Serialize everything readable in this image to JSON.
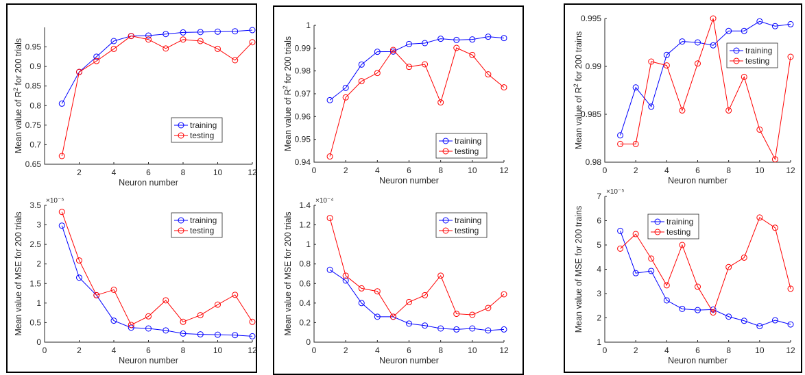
{
  "colors": {
    "training": "#0000ff",
    "testing": "#ff0000",
    "axis": "#262626"
  },
  "chart_data": [
    {
      "id": "p1-r2",
      "type": "line",
      "title": "",
      "xlabel": "Neuron number",
      "ylabel_pre": "Mean value of R",
      "ylabel_sup": "2",
      "ylabel_post": " for 200 trials",
      "exponent_label": "",
      "xlim": [
        0,
        12
      ],
      "ylim": [
        0.65,
        1.0
      ],
      "xticks": [
        0,
        2,
        4,
        6,
        8,
        10,
        12
      ],
      "xtick_labels": [
        "",
        "2",
        "4",
        "6",
        "8",
        "10",
        "12"
      ],
      "yticks": [
        0.65,
        0.7,
        0.75,
        0.8,
        0.85,
        0.9,
        0.95
      ],
      "ytick_labels": [
        "0.65",
        "0.7",
        "0.75",
        "0.8",
        "0.85",
        "0.9",
        "0.95"
      ],
      "legend": [
        "training",
        "testing"
      ],
      "legend_position": "center-right",
      "x": [
        1,
        2,
        3,
        4,
        5,
        6,
        7,
        8,
        9,
        10,
        11,
        12
      ],
      "series": [
        {
          "name": "training",
          "values": [
            0.805,
            0.886,
            0.925,
            0.965,
            0.978,
            0.979,
            0.983,
            0.987,
            0.988,
            0.989,
            0.99,
            0.993
          ]
        },
        {
          "name": "testing",
          "values": [
            0.671,
            0.886,
            0.914,
            0.945,
            0.978,
            0.969,
            0.946,
            0.969,
            0.965,
            0.945,
            0.916,
            0.962
          ]
        }
      ]
    },
    {
      "id": "p1-mse",
      "type": "line",
      "title": "",
      "xlabel": "Neuron number",
      "ylabel_pre": "Mean value of MSE for 200 trials",
      "ylabel_sup": "",
      "ylabel_post": "",
      "exponent_label": "×10⁻⁵",
      "xlim": [
        0,
        12
      ],
      "ylim": [
        0,
        3.5
      ],
      "xticks": [
        0,
        2,
        4,
        6,
        8,
        10,
        12
      ],
      "xtick_labels": [
        "0",
        "2",
        "4",
        "6",
        "8",
        "10",
        "12"
      ],
      "yticks": [
        0,
        0.5,
        1,
        1.5,
        2,
        2.5,
        3,
        3.5
      ],
      "ytick_labels": [
        "0",
        "0.5",
        "1",
        "1.5",
        "2",
        "2.5",
        "3",
        "3.5"
      ],
      "legend": [
        "training",
        "testing"
      ],
      "legend_position": "top-right",
      "x": [
        1,
        2,
        3,
        4,
        5,
        6,
        7,
        8,
        9,
        10,
        11,
        12
      ],
      "series": [
        {
          "name": "training",
          "values": [
            2.98,
            1.65,
            1.2,
            0.55,
            0.37,
            0.35,
            0.3,
            0.22,
            0.2,
            0.19,
            0.18,
            0.15
          ]
        },
        {
          "name": "testing",
          "values": [
            3.33,
            2.09,
            1.2,
            1.34,
            0.44,
            0.66,
            1.07,
            0.52,
            0.69,
            0.96,
            1.21,
            0.52
          ]
        }
      ]
    },
    {
      "id": "p2-r2",
      "type": "line",
      "title": "",
      "xlabel": "Neuron number",
      "ylabel_pre": "Mean value of R",
      "ylabel_sup": "2",
      "ylabel_post": " for 200 trials",
      "exponent_label": "",
      "xlim": [
        0,
        12
      ],
      "ylim": [
        0.94,
        1.0
      ],
      "xticks": [
        0,
        2,
        4,
        6,
        8,
        10,
        12
      ],
      "xtick_labels": [
        "0",
        "2",
        "4",
        "6",
        "8",
        "10",
        "12"
      ],
      "yticks": [
        0.94,
        0.95,
        0.96,
        0.97,
        0.98,
        0.99,
        1.0
      ],
      "ytick_labels": [
        "0.94",
        "0.95",
        "0.96",
        "0.97",
        "0.98",
        "0.99",
        "1"
      ],
      "legend": [
        "training",
        "testing"
      ],
      "legend_position": "bottom-right",
      "x": [
        1,
        2,
        3,
        4,
        5,
        6,
        7,
        8,
        9,
        10,
        11,
        12
      ],
      "series": [
        {
          "name": "training",
          "values": [
            0.9672,
            0.9726,
            0.9828,
            0.9884,
            0.9885,
            0.9918,
            0.9922,
            0.9941,
            0.9936,
            0.9938,
            0.995,
            0.9944
          ]
        },
        {
          "name": "testing",
          "values": [
            0.9425,
            0.9684,
            0.9755,
            0.9791,
            0.9892,
            0.9818,
            0.9829,
            0.9662,
            0.9901,
            0.987,
            0.9785,
            0.9728
          ]
        }
      ]
    },
    {
      "id": "p2-mse",
      "type": "line",
      "title": "",
      "xlabel": "Neuron number",
      "ylabel_pre": "Mean value of MSE for 200 trials",
      "ylabel_sup": "",
      "ylabel_post": "",
      "exponent_label": "×10⁻⁴",
      "xlim": [
        0,
        12
      ],
      "ylim": [
        0,
        1.4
      ],
      "xticks": [
        0,
        2,
        4,
        6,
        8,
        10,
        12
      ],
      "xtick_labels": [
        "0",
        "2",
        "4",
        "6",
        "8",
        "10",
        "12"
      ],
      "yticks": [
        0,
        0.2,
        0.4,
        0.6,
        0.8,
        1,
        1.2,
        1.4
      ],
      "ytick_labels": [
        "0",
        "0.2",
        "0.4",
        "0.6",
        "0.8",
        "1",
        "1.2",
        "1.4"
      ],
      "legend": [
        "training",
        "testing"
      ],
      "legend_position": "top-right",
      "x": [
        1,
        2,
        3,
        4,
        5,
        6,
        7,
        8,
        9,
        10,
        11,
        12
      ],
      "series": [
        {
          "name": "training",
          "values": [
            0.74,
            0.63,
            0.4,
            0.26,
            0.26,
            0.19,
            0.17,
            0.14,
            0.13,
            0.14,
            0.12,
            0.13
          ]
        },
        {
          "name": "testing",
          "values": [
            1.27,
            0.68,
            0.55,
            0.52,
            0.26,
            0.41,
            0.48,
            0.68,
            0.29,
            0.28,
            0.35,
            0.49
          ]
        }
      ]
    },
    {
      "id": "p3-r2",
      "type": "line",
      "title": "",
      "xlabel": "Neuron number",
      "ylabel_pre": "Mean value of R",
      "ylabel_sup": "2",
      "ylabel_post": " for 200 trains",
      "exponent_label": "",
      "xlim": [
        0,
        12
      ],
      "ylim": [
        0.98,
        0.995
      ],
      "xticks": [
        0,
        2,
        4,
        6,
        8,
        10,
        12
      ],
      "xtick_labels": [
        "0",
        "2",
        "4",
        "6",
        "8",
        "10",
        "12"
      ],
      "yticks": [
        0.98,
        0.985,
        0.99,
        0.995
      ],
      "ytick_labels": [
        "0.98",
        "0.985",
        "0.99",
        "0.995"
      ],
      "legend": [
        "training",
        "testing"
      ],
      "legend_position": "top-right",
      "x": [
        1,
        2,
        3,
        4,
        5,
        6,
        7,
        8,
        9,
        10,
        11,
        12
      ],
      "series": [
        {
          "name": "training",
          "values": [
            0.9828,
            0.9878,
            0.9858,
            0.9912,
            0.9926,
            0.9925,
            0.9922,
            0.9937,
            0.9937,
            0.9947,
            0.9942,
            0.9944
          ]
        },
        {
          "name": "testing",
          "values": [
            0.9819,
            0.9819,
            0.9905,
            0.9901,
            0.9854,
            0.9903,
            0.995,
            0.9854,
            0.9889,
            0.9834,
            0.9803,
            0.991
          ]
        }
      ]
    },
    {
      "id": "p3-mse",
      "type": "line",
      "title": "",
      "xlabel": "Neuron number",
      "ylabel_pre": "Mean value of MSE for 200 trains",
      "ylabel_sup": "",
      "ylabel_post": "",
      "exponent_label": "×10⁻⁵",
      "xlim": [
        0,
        12
      ],
      "ylim": [
        1,
        7
      ],
      "xticks": [
        0,
        2,
        4,
        6,
        8,
        10,
        12
      ],
      "xtick_labels": [
        "0",
        "2",
        "4",
        "6",
        "8",
        "10",
        "12"
      ],
      "yticks": [
        1,
        2,
        3,
        4,
        5,
        6,
        7
      ],
      "ytick_labels": [
        "1",
        "2",
        "3",
        "4",
        "5",
        "6",
        "7"
      ],
      "legend": [
        "training",
        "testing"
      ],
      "legend_position": "top-left",
      "x": [
        1,
        2,
        3,
        4,
        5,
        6,
        7,
        8,
        9,
        10,
        11,
        12
      ],
      "series": [
        {
          "name": "training",
          "values": [
            5.58,
            3.84,
            3.93,
            2.72,
            2.37,
            2.32,
            2.34,
            2.05,
            1.88,
            1.66,
            1.9,
            1.73
          ]
        },
        {
          "name": "testing",
          "values": [
            4.85,
            5.45,
            4.44,
            3.34,
            5.0,
            3.28,
            2.22,
            4.09,
            4.48,
            6.13,
            5.71,
            3.2
          ]
        }
      ]
    }
  ]
}
